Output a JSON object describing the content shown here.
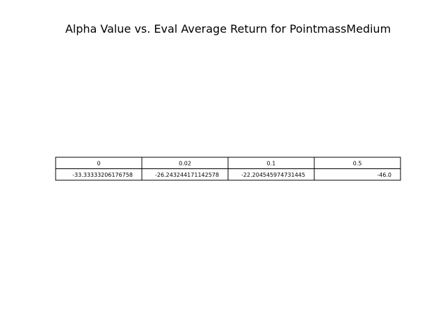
{
  "chart_data": {
    "type": "table",
    "title": "Alpha Value vs. Eval Average Return for PointmassMedium",
    "columns": [
      "0",
      "0.02",
      "0.1",
      "0.5"
    ],
    "rows": [
      [
        "-33.33333206176758",
        "-26.243244171142578",
        "-22.204545974731445",
        "-46.0"
      ]
    ],
    "values": [
      -33.33333206176758,
      -26.243244171142578,
      -22.204545974731445,
      -46.0
    ]
  }
}
